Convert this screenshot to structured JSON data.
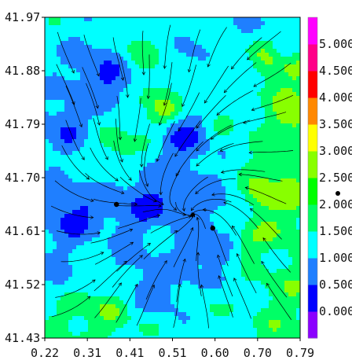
{
  "chart_data": {
    "type": "heatmap",
    "title": "",
    "xlabel": "",
    "ylabel": "",
    "xlim": [
      0.22,
      0.79
    ],
    "ylim": [
      41.43,
      41.97
    ],
    "x_ticks": [
      "0.22",
      "0.31",
      "0.41",
      "0.51",
      "0.60",
      "0.70",
      "0.79"
    ],
    "y_ticks": [
      "41.43",
      "41.52",
      "41.61",
      "41.70",
      "41.79",
      "41.88",
      "41.97"
    ],
    "overlay": "streamlines with arrowheads",
    "colorbar": {
      "levels": [
        "0.000",
        "0.500",
        "1.000",
        "1.500",
        "2.000",
        "2.500",
        "3.000",
        "3.500",
        "4.000",
        "4.500",
        "5.000"
      ],
      "colors": [
        "#8b00ff",
        "#0000ff",
        "#1f7fff",
        "#00ffff",
        "#00ff66",
        "#00ff00",
        "#88ff00",
        "#ffff00",
        "#ff8800",
        "#ff0000",
        "#ff0088",
        "#ff00ff"
      ]
    },
    "markers": [
      {
        "x": 0.38,
        "y": 41.655
      },
      {
        "x": 0.595,
        "y": 41.615
      }
    ],
    "legend_marker": "dot"
  }
}
